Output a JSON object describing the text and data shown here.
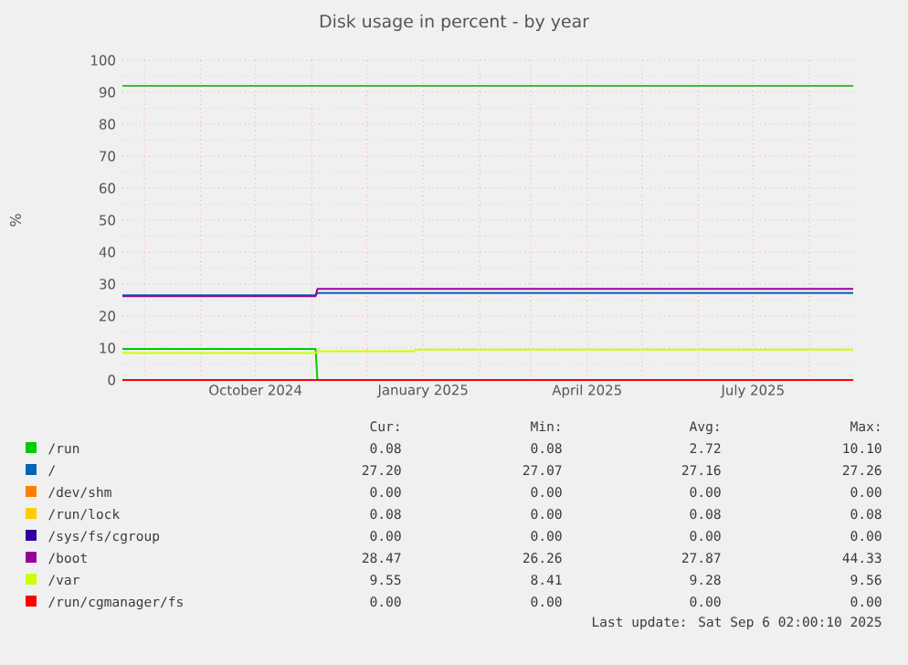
{
  "chart_data": {
    "type": "line",
    "title": "Disk usage in percent - by year",
    "ylabel": "%",
    "x": [
      "2024-07-20",
      "2024-11-03",
      "2024-11-04",
      "2024-12-27",
      "2024-12-28",
      "2025-08-25"
    ],
    "xlim": [
      "2024-07-20",
      "2025-08-25"
    ],
    "xticks": [
      {
        "value": "2024-08-01",
        "label": null
      },
      {
        "value": "2024-09-01",
        "label": null
      },
      {
        "value": "2024-10-01",
        "label": "October 2024"
      },
      {
        "value": "2024-11-01",
        "label": null
      },
      {
        "value": "2024-12-01",
        "label": null
      },
      {
        "value": "2025-01-01",
        "label": "January 2025"
      },
      {
        "value": "2025-02-01",
        "label": null
      },
      {
        "value": "2025-03-01",
        "label": null
      },
      {
        "value": "2025-04-01",
        "label": "April 2025"
      },
      {
        "value": "2025-05-01",
        "label": null
      },
      {
        "value": "2025-06-01",
        "label": null
      },
      {
        "value": "2025-07-01",
        "label": "July 2025"
      },
      {
        "value": "2025-08-01",
        "label": null
      }
    ],
    "ylim": [
      0,
      100
    ],
    "yticks": [
      0,
      10,
      20,
      30,
      40,
      50,
      60,
      70,
      80,
      90,
      100
    ],
    "grid": true,
    "legend": "bottom",
    "series": [
      {
        "name": "/run",
        "color": "#00cc00",
        "values": [
          9.7,
          9.7,
          0,
          null,
          null,
          null
        ]
      },
      {
        "name": "/",
        "color": "#0066b3",
        "values": [
          26.5,
          26.5,
          27.2,
          27.2,
          27.2,
          27.2
        ]
      },
      {
        "name": "/dev/shm",
        "color": "#ff8000",
        "values": [
          null,
          null,
          null,
          null,
          null,
          null
        ]
      },
      {
        "name": "/run/lock",
        "color": "#ffcc00",
        "values": [
          null,
          null,
          null,
          null,
          null,
          null
        ]
      },
      {
        "name": "/sys/fs/cgroup",
        "color": "#330099",
        "values": [
          null,
          null,
          null,
          null,
          null,
          null
        ]
      },
      {
        "name": "/boot",
        "color": "#990099",
        "values": [
          26.2,
          26.2,
          28.5,
          28.5,
          28.5,
          28.5
        ]
      },
      {
        "name": "/var",
        "color": "#ccff00",
        "values": [
          8.4,
          8.4,
          9.0,
          9.0,
          9.5,
          9.5
        ]
      },
      {
        "name": "/run/cgmanager/fs",
        "color": "#ff0000",
        "values": [
          0,
          0,
          0,
          0,
          0,
          0
        ]
      }
    ],
    "ref_lines": [
      {
        "axis": "y",
        "value": 92,
        "color": "#00aa00"
      }
    ],
    "annotations": [
      "Cur:",
      "Min:",
      "Avg:",
      "Max:",
      "0.08",
      "0.08",
      "2.72",
      "10.10",
      "27.20",
      "27.07",
      "27.16",
      "27.26",
      "0.00",
      "0.00",
      "0.00",
      "0.00",
      "0.08",
      "0.00",
      "0.08",
      "0.08",
      "0.00",
      "0.00",
      "0.00",
      "0.00",
      "28.47",
      "26.26",
      "27.87",
      "44.33",
      "9.55",
      "8.41",
      "9.28",
      "9.56",
      "0.00",
      "0.00",
      "0.00",
      "0.00",
      "Last update: Sat Sep  6 02:00:10 2025"
    ]
  }
}
